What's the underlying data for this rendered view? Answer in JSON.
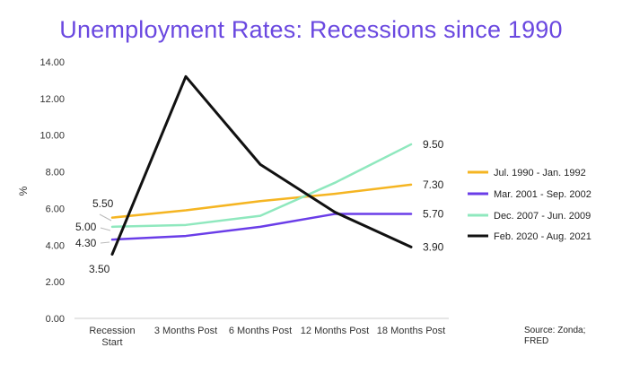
{
  "chart_data": {
    "type": "line",
    "title": "Unemployment Rates: Recessions since 1990",
    "ylabel": "%",
    "xlabel": "",
    "ylim": [
      0,
      14
    ],
    "yticks": [
      "0.00",
      "2.00",
      "4.00",
      "6.00",
      "8.00",
      "10.00",
      "12.00",
      "14.00"
    ],
    "categories": [
      "Recession Start",
      "3 Months Post",
      "6 Months Post",
      "12 Months Post",
      "18 Months Post"
    ],
    "series": [
      {
        "name": "Jul. 1990 - Jan. 1992",
        "color": "#f5b522",
        "values": [
          5.5,
          5.9,
          6.4,
          6.8,
          7.3
        ]
      },
      {
        "name": "Mar. 2001 - Sep. 2002",
        "color": "#6a3de8",
        "values": [
          4.3,
          4.5,
          5.0,
          5.7,
          5.7
        ]
      },
      {
        "name": "Dec. 2007 - Jun. 2009",
        "color": "#8fe8be",
        "values": [
          5.0,
          5.1,
          5.6,
          7.4,
          9.5
        ]
      },
      {
        "name": "Feb. 2020 - Aug. 2021",
        "color": "#111111",
        "values": [
          3.5,
          13.2,
          8.4,
          5.8,
          3.9
        ]
      }
    ],
    "start_labels": [
      "5.50",
      "4.30",
      "5.00",
      "3.50"
    ],
    "end_labels": [
      "7.30",
      "5.70",
      "9.50",
      "3.90"
    ],
    "legend_position": "right",
    "grid": false
  },
  "source": {
    "line1": "Source: Zonda;",
    "line2": "FRED"
  }
}
